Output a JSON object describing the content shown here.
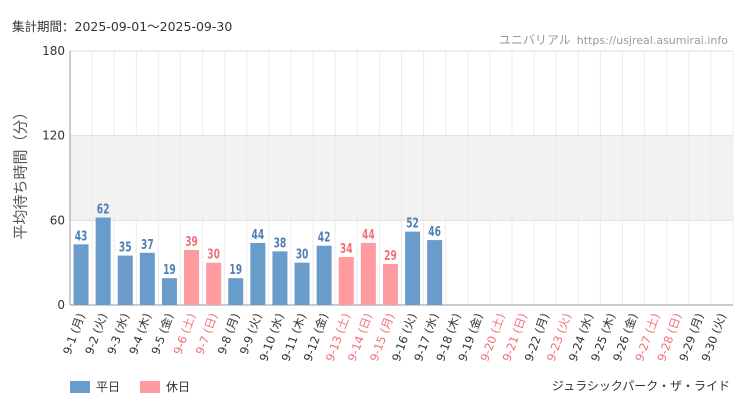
{
  "header": {
    "period_label": "集計期間：2025-09-01〜2025-09-30",
    "site_name": "ユニバリアル",
    "site_url": "https://usjreal.asumirai.info"
  },
  "footer": {
    "ride_name": "ジュラシックパーク・ザ・ライド"
  },
  "colors": {
    "weekday": "#6a9ccb",
    "holiday": "#ff9a9e",
    "weekday_text": "#4f80b3",
    "holiday_text": "#f07078",
    "band": "#f2f2f2"
  },
  "chart_data": {
    "type": "bar",
    "ylabel": "平均待ち時間（分）",
    "ylim": [
      0,
      180
    ],
    "yticks": [
      0,
      60,
      120,
      180
    ],
    "categories": [
      "9-1 (月)",
      "9-2 (火)",
      "9-3 (水)",
      "9-4 (木)",
      "9-5 (金)",
      "9-6 (土)",
      "9-7 (日)",
      "9-8 (月)",
      "9-9 (火)",
      "9-10 (水)",
      "9-11 (木)",
      "9-12 (金)",
      "9-13 (土)",
      "9-14 (日)",
      "9-15 (月)",
      "9-16 (火)",
      "9-17 (水)",
      "9-18 (木)",
      "9-19 (金)",
      "9-20 (土)",
      "9-21 (日)",
      "9-22 (月)",
      "9-23 (火)",
      "9-24 (水)",
      "9-25 (木)",
      "9-26 (金)",
      "9-27 (土)",
      "9-28 (日)",
      "9-29 (月)",
      "9-30 (火)"
    ],
    "values": [
      43,
      62,
      35,
      37,
      19,
      39,
      30,
      19,
      44,
      38,
      30,
      42,
      34,
      44,
      29,
      52,
      46,
      null,
      null,
      null,
      null,
      null,
      null,
      null,
      null,
      null,
      null,
      null,
      null,
      null
    ],
    "day_type": [
      "weekday",
      "weekday",
      "weekday",
      "weekday",
      "weekday",
      "holiday",
      "holiday",
      "weekday",
      "weekday",
      "weekday",
      "weekday",
      "weekday",
      "holiday",
      "holiday",
      "holiday",
      "weekday",
      "weekday",
      "weekday",
      "weekday",
      "holiday",
      "holiday",
      "weekday",
      "holiday",
      "weekday",
      "weekday",
      "weekday",
      "holiday",
      "holiday",
      "weekday",
      "weekday"
    ],
    "legend": [
      {
        "label": "平日",
        "type": "weekday"
      },
      {
        "label": "休日",
        "type": "holiday"
      }
    ],
    "shaded_band": [
      60,
      120
    ],
    "grid": true,
    "legend_position": "bottom-left"
  }
}
